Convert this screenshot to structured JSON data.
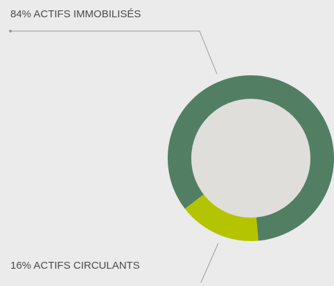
{
  "chart_data": {
    "type": "donut",
    "categories": [
      "ACTIFS IMMOBILISÉS",
      "ACTIFS CIRCULANTS"
    ],
    "values": [
      84,
      16
    ],
    "value_labels": [
      "84%",
      "16%"
    ],
    "colors": [
      "#527f63",
      "#b5c400"
    ]
  }
}
